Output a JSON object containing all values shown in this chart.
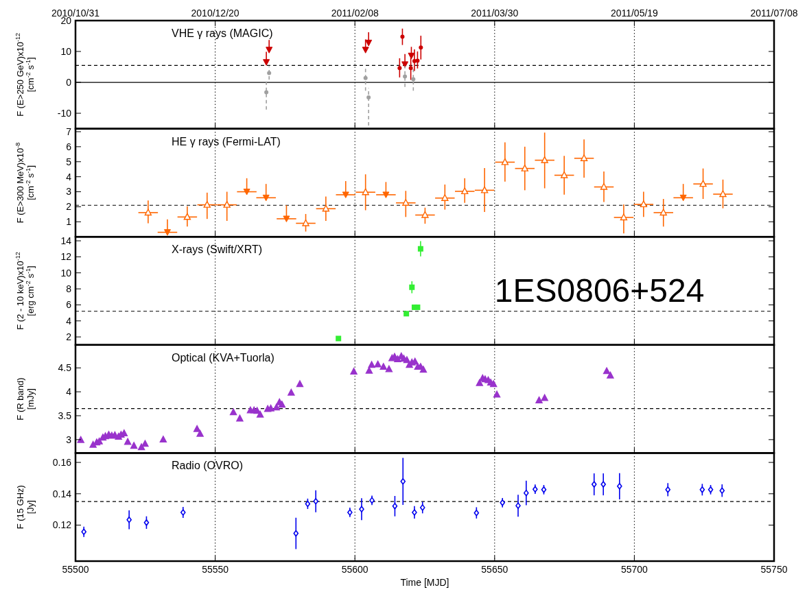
{
  "chart_data": [
    {
      "type": "scatter",
      "title": "VHE γ rays (MAGIC)",
      "ylabel": "F (E>250 GeV)x10$^{-12}$\n[cm$^{-2}$ s$^{-1}$]",
      "xlim": [
        55500,
        55750
      ],
      "xticks": [
        55500,
        55550,
        55600,
        55650,
        55700,
        55750
      ],
      "x2lim": [
        "2010-10-31",
        "2011-07-08"
      ],
      "x2ticks": [
        {
          "value": "2010-10-31",
          "label": "2010/10/31"
        },
        {
          "value": "2010-12-20",
          "label": "2010/12/20"
        },
        {
          "value": "2011-02-08",
          "label": "2011/02/08"
        },
        {
          "value": "2011-03-30",
          "label": "2011/03/30"
        },
        {
          "value": "2011-05-19",
          "label": "2011/05/19"
        },
        {
          "value": "2011-07-08",
          "label": "2011/07/08"
        }
      ],
      "ylim": [
        -15,
        20
      ],
      "yticks": [
        -10,
        0,
        10,
        20
      ],
      "grid": "x",
      "tick_labels": "y",
      "ref_lines": [
        {
          "axis": "y",
          "value": 5.5,
          "line_style": "dashed"
        },
        {
          "axis": "y",
          "value": 0,
          "line_style": "solid"
        }
      ],
      "series": [
        {
          "color": "#cc0000",
          "marker": "circle",
          "x": [
            55616,
            55617,
            55620,
            55621.3,
            55622.4,
            55623.6
          ],
          "values": [
            4.6,
            14.8,
            4.6,
            6.9,
            7.0,
            11.3
          ],
          "errors": [
            [
              1.6,
              7.8
            ],
            [
              12.1,
              17.4
            ],
            [
              0.8,
              8.1
            ],
            [
              3.7,
              10.7
            ],
            [
              4.5,
              10.0
            ],
            [
              7.4,
              15.1
            ]
          ]
        },
        {
          "color": "#cc0000",
          "marker": "triangle",
          "x": [
            55568.3,
            55569.3,
            55603.8,
            55604.9,
            55617.9,
            55620.2
          ],
          "values": [
            6.5,
            10.5,
            10.5,
            12.8,
            5.8,
            8.6
          ],
          "errors": [
            [
              6.5,
              9.9
            ],
            [
              10.5,
              13.7
            ],
            [
              10.5,
              13.9
            ],
            [
              12.8,
              16.2
            ],
            [
              5.8,
              9.2
            ],
            [
              8.6,
              11.5
            ]
          ]
        },
        {
          "color": "#a0a0a0",
          "marker": "circle",
          "line_style": "dashed",
          "x": [
            55568.3,
            55569.3,
            55603.8,
            55604.9,
            55617.9,
            55620.9
          ],
          "values": [
            -3.2,
            3.0,
            1.4,
            -4.9,
            1.9,
            1.0
          ],
          "errors": [
            [
              -8.8,
              0.9
            ],
            [
              0.9,
              5.1
            ],
            [
              -2.7,
              5.1
            ],
            [
              -14,
              -1.9
            ],
            [
              -1.5,
              5.3
            ],
            [
              -2.7,
              4.3
            ]
          ]
        }
      ]
    },
    {
      "type": "scatter",
      "title": "HE γ rays (Fermi-LAT)",
      "ylabel": "F (E>300 MeV)x10$^{-8}$\n[cm$^{-2}$ s$^{-1}$]",
      "xlim": [
        55500,
        55750
      ],
      "xticks": [
        55500,
        55550,
        55600,
        55650,
        55700,
        55750
      ],
      "ylim": [
        0,
        7.2
      ],
      "yticks": [
        1,
        2,
        3,
        4,
        5,
        6,
        7
      ],
      "grid": "x",
      "tick_labels": "y",
      "ref_lines": [
        {
          "axis": "y",
          "value": 2.1,
          "line_style": "dashed"
        }
      ],
      "series": [
        {
          "color": "#ff6600",
          "marker": "triangle",
          "x": [
            55526.0,
            55540.0,
            55547.1,
            55554.2,
            55582.4,
            55589.6,
            55603.8,
            55618.2,
            55625.1,
            55632.2,
            55639.3,
            55646.4,
            55653.7,
            55660.8,
            55667.9,
            55674.9,
            55682.0,
            55689.1,
            55696.2,
            55703.3,
            55710.4,
            55724.6,
            55731.7
          ],
          "values": [
            1.61,
            1.32,
            2.13,
            2.13,
            0.9,
            1.87,
            2.97,
            2.26,
            1.45,
            2.58,
            3.03,
            3.1,
            4.97,
            4.55,
            5.1,
            4.1,
            5.23,
            3.32,
            1.29,
            2.16,
            1.61,
            3.52,
            2.84
          ],
          "errors": [
            [
              0.9,
              2.42
            ],
            [
              0.68,
              2.03
            ],
            [
              1.19,
              2.94
            ],
            [
              1.06,
              3.0
            ],
            [
              0.35,
              1.52
            ],
            [
              1.06,
              2.68
            ],
            [
              1.77,
              4.16
            ],
            [
              1.32,
              3.06
            ],
            [
              0.87,
              1.94
            ],
            [
              1.81,
              3.48
            ],
            [
              2.26,
              3.9
            ],
            [
              1.65,
              4.58
            ],
            [
              3.68,
              6.29
            ],
            [
              3.1,
              6.0
            ],
            [
              3.23,
              6.94
            ],
            [
              2.81,
              5.39
            ],
            [
              3.94,
              6.48
            ],
            [
              2.32,
              4.35
            ],
            [
              0.23,
              2.16
            ],
            [
              1.32,
              3.0
            ],
            [
              0.68,
              2.52
            ],
            [
              2.52,
              4.55
            ],
            [
              1.9,
              3.81
            ]
          ],
          "xerrors": [
            3.5,
            3.5,
            3.5,
            3.5,
            3.5,
            3.5,
            3.5,
            3.5,
            3.5,
            3.5,
            3.5,
            3.5,
            3.5,
            3.5,
            3.5,
            3.5,
            3.5,
            3.5,
            3.5,
            3.5,
            3.5,
            3.5,
            3.5
          ]
        },
        {
          "color": "#ff6600",
          "marker": "triangle",
          "x": [
            55532.9,
            55561.3,
            55568.2,
            55575.5,
            55596.7,
            55611.1,
            55717.5
          ],
          "values": [
            0.3,
            3.0,
            2.6,
            1.2,
            2.8,
            2.8,
            2.6
          ],
          "errors": [
            [
              0.3,
              1.16
            ],
            [
              3.0,
              3.9
            ],
            [
              2.6,
              3.52
            ],
            [
              1.2,
              2.1
            ],
            [
              2.8,
              3.71
            ],
            [
              2.8,
              3.65
            ],
            [
              2.6,
              3.52
            ]
          ],
          "xerrors": [
            3.5,
            3.5,
            3.5,
            3.5,
            3.5,
            3.5,
            3.5
          ]
        }
      ]
    },
    {
      "type": "scatter",
      "title": "X-rays (Swift/XRT)",
      "ylabel": "F (2 - 10 keV)x10$^{-12}$\n[erg cm$^{-2}$ s$^{-1}$]",
      "annotations": [
        "1ES0806+524"
      ],
      "xlim": [
        55500,
        55750
      ],
      "xticks": [
        55500,
        55550,
        55600,
        55650,
        55700,
        55750
      ],
      "ylim": [
        1,
        14.5
      ],
      "yticks": [
        2,
        4,
        6,
        8,
        10,
        12,
        14
      ],
      "grid": "x",
      "tick_labels": "y",
      "ref_lines": [
        {
          "axis": "y",
          "value": 5.2,
          "line_style": "dashed"
        }
      ],
      "series": [
        {
          "color": "#33ee33",
          "marker": "square",
          "x": [
            55594.1,
            55618.4,
            55620.4,
            55621.3,
            55622.4,
            55623.5
          ],
          "values": [
            1.8,
            4.9,
            8.2,
            5.7,
            5.7,
            13.0
          ],
          "errors": [
            0.3,
            0.25,
            0.75,
            0.3,
            0.3,
            0.95
          ]
        }
      ]
    },
    {
      "type": "scatter",
      "title": "Optical (KVA+Tuorla)",
      "ylabel": "F (R band)\n[mJy]",
      "xlim": [
        55500,
        55750
      ],
      "xticks": [
        55500,
        55550,
        55600,
        55650,
        55700,
        55750
      ],
      "ylim": [
        2.72,
        4.98
      ],
      "yticks": [
        3,
        3.5,
        4,
        4.5
      ],
      "grid": "x",
      "tick_labels": "y",
      "ref_lines": [
        {
          "axis": "y",
          "value": 3.65,
          "line_style": "dashed"
        }
      ],
      "series": [
        {
          "color": "#9933cc",
          "marker": "triangle",
          "x": [
            55501.9,
            55506.3,
            55507.6,
            55508.5,
            55509.8,
            55510.7,
            55511.9,
            55513.0,
            55514.1,
            55515.4,
            55516.3,
            55517.4,
            55518.7,
            55520.9,
            55523.6,
            55524.9,
            55531.4,
            55543.5,
            55544.6,
            55556.5,
            55558.8,
            55562.6,
            55563.9,
            55565.0,
            55566.1,
            55568.8,
            55569.9,
            55571.9,
            55573.0,
            55573.9,
            55577.2,
            55580.3,
            55599.6,
            55605.1,
            55606.0,
            55608.2,
            55610.2,
            55612.2,
            55613.3,
            55614.2,
            55615.3,
            55616.6,
            55617.5,
            55618.6,
            55619.5,
            55620.4,
            55621.5,
            55622.5,
            55623.5,
            55624.5,
            55644.6,
            55645.7,
            55646.6,
            55647.7,
            55648.6,
            55649.6,
            55650.8,
            55665.9,
            55667.9,
            55690.1,
            55691.4
          ],
          "values": [
            2.99,
            2.89,
            2.94,
            2.96,
            3.04,
            3.07,
            3.1,
            3.08,
            3.09,
            3.06,
            3.1,
            3.13,
            2.95,
            2.87,
            2.84,
            2.91,
            3.0,
            3.22,
            3.12,
            3.57,
            3.44,
            3.61,
            3.61,
            3.6,
            3.52,
            3.64,
            3.65,
            3.67,
            3.78,
            3.73,
            3.98,
            4.16,
            4.42,
            4.44,
            4.56,
            4.57,
            4.52,
            4.47,
            4.7,
            4.73,
            4.68,
            4.74,
            4.69,
            4.66,
            4.56,
            4.61,
            4.63,
            4.52,
            4.52,
            4.46,
            4.18,
            4.28,
            4.26,
            4.24,
            4.19,
            4.16,
            3.94,
            3.82,
            3.87,
            4.43,
            4.34
          ]
        }
      ]
    },
    {
      "type": "scatter",
      "title": "Radio (OVRO)",
      "ylabel": "F (15 GHz)\n[Jy]",
      "xlabel": "Time [MJD]",
      "xlim": [
        55500,
        55750
      ],
      "xticks": [
        55500,
        55550,
        55600,
        55650,
        55700,
        55750
      ],
      "ylim": [
        0.097,
        0.166
      ],
      "yticks": [
        0.12,
        0.14,
        0.16
      ],
      "grid": "x",
      "ref_lines": [
        {
          "axis": "y",
          "value": 0.135,
          "line_style": "dashed"
        }
      ],
      "series": [
        {
          "color": "#0000ee",
          "marker": "diamond",
          "x": [
            55503.0,
            55519.2,
            55525.4,
            55538.5,
            55578.9,
            55583.1,
            55586.0,
            55598.2,
            55602.4,
            55606.1,
            55614.3,
            55617.2,
            55621.3,
            55624.2,
            55643.5,
            55652.8,
            55658.4,
            55661.3,
            55664.5,
            55667.6,
            55685.6,
            55688.9,
            55694.7,
            55712.0,
            55724.3,
            55727.3,
            55731.4
          ],
          "values": [
            0.1157,
            0.1234,
            0.1216,
            0.1281,
            0.1147,
            0.1336,
            0.1352,
            0.1281,
            0.1302,
            0.1358,
            0.1321,
            0.1479,
            0.1281,
            0.1312,
            0.1278,
            0.1343,
            0.1324,
            0.1405,
            0.1429,
            0.1426,
            0.146,
            0.146,
            0.1448,
            0.1426,
            0.1426,
            0.1426,
            0.142
          ],
          "errors": [
            0.0033,
            0.006,
            0.004,
            0.0035,
            0.01,
            0.0033,
            0.007,
            0.003,
            0.007,
            0.003,
            0.0065,
            0.015,
            0.004,
            0.0037,
            0.0036,
            0.003,
            0.007,
            0.0078,
            0.003,
            0.003,
            0.007,
            0.007,
            0.0084,
            0.0042,
            0.0037,
            0.003,
            0.004
          ]
        }
      ]
    }
  ]
}
